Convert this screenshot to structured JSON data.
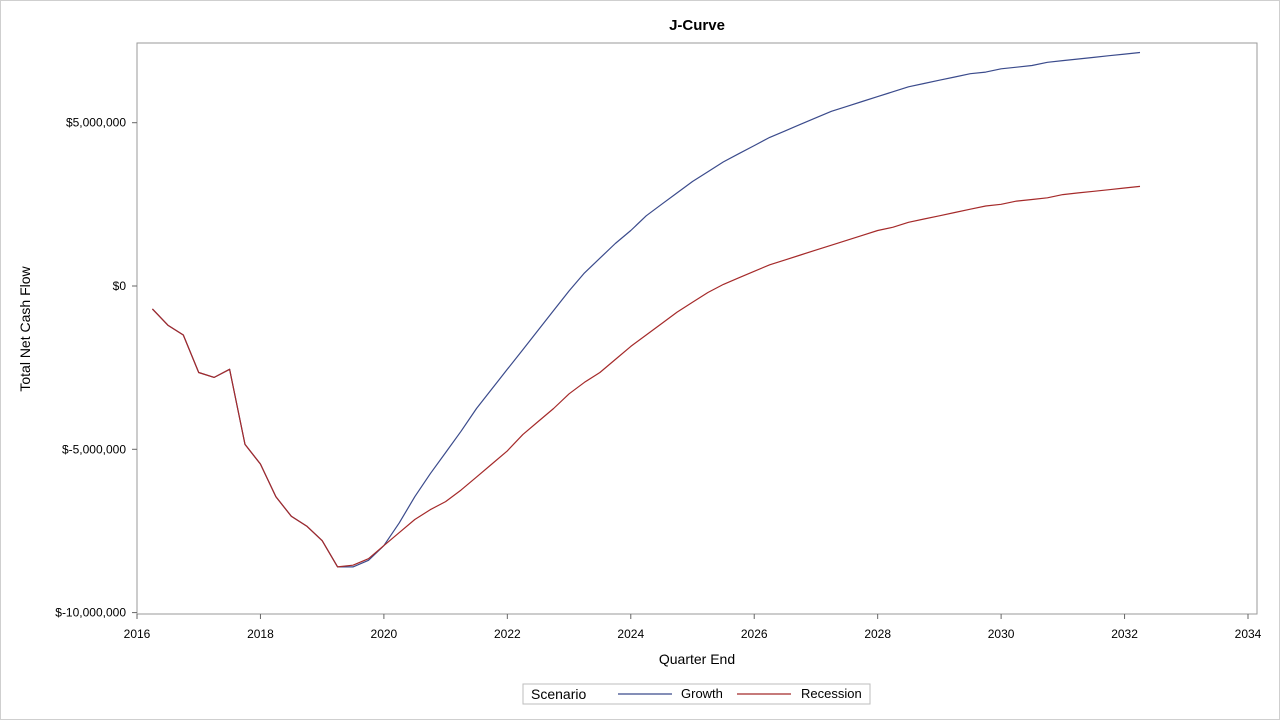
{
  "chart_data": {
    "type": "line",
    "title": "J-Curve",
    "xlabel": "Quarter End",
    "ylabel": "Total Net Cash Flow",
    "xlim": [
      2016,
      2034
    ],
    "ylim": [
      -10000000,
      7500000
    ],
    "x_ticks": [
      2016,
      2018,
      2020,
      2022,
      2024,
      2026,
      2028,
      2030,
      2032,
      2034
    ],
    "x_tick_labels": [
      "2016",
      "2018",
      "2020",
      "2022",
      "2024",
      "2026",
      "2028",
      "2030",
      "2032",
      "2034"
    ],
    "y_ticks": [
      -10000000,
      -5000000,
      0,
      5000000
    ],
    "y_tick_labels": [
      "$-10,000,000",
      "$-5,000,000",
      "$0",
      "$5,000,000"
    ],
    "legend": {
      "title": "Scenario",
      "position": "bottom-center"
    },
    "grid": false,
    "series": [
      {
        "name": "Growth",
        "color": "#3b4b8c",
        "x": [
          2016.25,
          2016.5,
          2016.75,
          2017.0,
          2017.25,
          2017.5,
          2017.75,
          2018.0,
          2018.25,
          2018.5,
          2018.75,
          2019.0,
          2019.25,
          2019.5,
          2019.75,
          2020.0,
          2020.25,
          2020.5,
          2020.75,
          2021.0,
          2021.25,
          2021.5,
          2021.75,
          2022.0,
          2022.25,
          2022.5,
          2022.75,
          2023.0,
          2023.25,
          2023.5,
          2023.75,
          2024.0,
          2024.25,
          2024.5,
          2024.75,
          2025.0,
          2025.25,
          2025.5,
          2025.75,
          2026.0,
          2026.25,
          2026.5,
          2026.75,
          2027.0,
          2027.25,
          2027.5,
          2027.75,
          2028.0,
          2028.25,
          2028.5,
          2028.75,
          2029.0,
          2029.25,
          2029.5,
          2029.75,
          2030.0,
          2030.25,
          2030.5,
          2030.75,
          2031.0,
          2031.25,
          2031.5,
          2031.75,
          2032.0,
          2032.25
        ],
        "values": [
          -700000,
          -1200000,
          -1500000,
          -2650000,
          -2800000,
          -2550000,
          -4850000,
          -5450000,
          -6450000,
          -7050000,
          -7350000,
          -7800000,
          -8600000,
          -8600000,
          -8400000,
          -7950000,
          -7250000,
          -6450000,
          -5750000,
          -5100000,
          -4450000,
          -3750000,
          -3150000,
          -2550000,
          -1950000,
          -1350000,
          -750000,
          -150000,
          400000,
          850000,
          1300000,
          1700000,
          2150000,
          2500000,
          2850000,
          3200000,
          3500000,
          3800000,
          4050000,
          4300000,
          4550000,
          4750000,
          4950000,
          5150000,
          5350000,
          5500000,
          5650000,
          5800000,
          5950000,
          6100000,
          6200000,
          6300000,
          6400000,
          6500000,
          6550000,
          6650000,
          6700000,
          6750000,
          6850000,
          6900000,
          6950000,
          7000000,
          7050000,
          7100000,
          7150000
        ]
      },
      {
        "name": "Recession",
        "color": "#a52a2a",
        "x": [
          2016.25,
          2016.5,
          2016.75,
          2017.0,
          2017.25,
          2017.5,
          2017.75,
          2018.0,
          2018.25,
          2018.5,
          2018.75,
          2019.0,
          2019.25,
          2019.5,
          2019.75,
          2020.0,
          2020.25,
          2020.5,
          2020.75,
          2021.0,
          2021.25,
          2021.5,
          2021.75,
          2022.0,
          2022.25,
          2022.5,
          2022.75,
          2023.0,
          2023.25,
          2023.5,
          2023.75,
          2024.0,
          2024.25,
          2024.5,
          2024.75,
          2025.0,
          2025.25,
          2025.5,
          2025.75,
          2026.0,
          2026.25,
          2026.5,
          2026.75,
          2027.0,
          2027.25,
          2027.5,
          2027.75,
          2028.0,
          2028.25,
          2028.5,
          2028.75,
          2029.0,
          2029.25,
          2029.5,
          2029.75,
          2030.0,
          2030.25,
          2030.5,
          2030.75,
          2031.0,
          2031.25,
          2031.5,
          2031.75,
          2032.0,
          2032.25
        ],
        "values": [
          -700000,
          -1200000,
          -1500000,
          -2650000,
          -2800000,
          -2550000,
          -4850000,
          -5450000,
          -6450000,
          -7050000,
          -7350000,
          -7800000,
          -8600000,
          -8550000,
          -8350000,
          -7950000,
          -7550000,
          -7150000,
          -6850000,
          -6600000,
          -6250000,
          -5850000,
          -5450000,
          -5050000,
          -4550000,
          -4150000,
          -3750000,
          -3300000,
          -2950000,
          -2650000,
          -2250000,
          -1850000,
          -1500000,
          -1150000,
          -800000,
          -500000,
          -200000,
          50000,
          250000,
          450000,
          650000,
          800000,
          950000,
          1100000,
          1250000,
          1400000,
          1550000,
          1700000,
          1800000,
          1950000,
          2050000,
          2150000,
          2250000,
          2350000,
          2450000,
          2500000,
          2600000,
          2650000,
          2700000,
          2800000,
          2850000,
          2900000,
          2950000,
          3000000,
          3050000
        ]
      }
    ]
  }
}
